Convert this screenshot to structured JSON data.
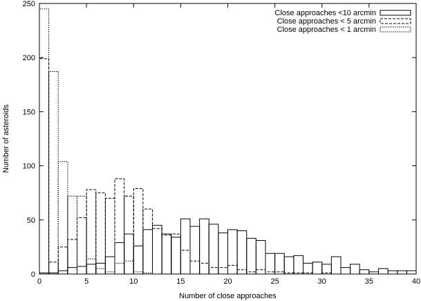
{
  "chart_data": {
    "type": "bar",
    "title": "",
    "xlabel": "Number of close approaches",
    "ylabel": "Number of asteroids",
    "xlim": [
      0,
      40
    ],
    "ylim": [
      0,
      250
    ],
    "xticks": [
      "0",
      "5",
      "10",
      "15",
      "20",
      "25",
      "30",
      "35",
      "40"
    ],
    "yticks": [
      "0",
      "50",
      "100",
      "150",
      "200",
      "250"
    ],
    "legend_position": "top-right",
    "grid": false,
    "bins": [
      0,
      1,
      2,
      3,
      4,
      5,
      6,
      7,
      8,
      9,
      10,
      11,
      12,
      13,
      14,
      15,
      16,
      17,
      18,
      19,
      20,
      21,
      22,
      23,
      24,
      25,
      26,
      27,
      28,
      29,
      30,
      31,
      32,
      33,
      34,
      35,
      36,
      37,
      38,
      39
    ],
    "series": [
      {
        "name": "Close approaches <10 arcmin",
        "line_style": "solid",
        "values": [
          1,
          1,
          3,
          6,
          7,
          9,
          10,
          16,
          29,
          37,
          26,
          41,
          45,
          37,
          34,
          51,
          44,
          51,
          46,
          38,
          41,
          40,
          33,
          31,
          19,
          19,
          16,
          17,
          10,
          11,
          9,
          16,
          6,
          9,
          4,
          2,
          5,
          3,
          3,
          3
        ]
      },
      {
        "name": "Close approaches < 5 arcmin",
        "line_style": "dashed",
        "values": [
          199,
          11,
          25,
          32,
          52,
          78,
          75,
          70,
          88,
          72,
          79,
          60,
          42,
          36,
          37,
          22,
          12,
          10,
          6,
          6,
          8,
          4,
          2,
          4,
          2,
          2,
          1,
          1,
          1,
          0,
          1,
          0,
          0,
          0,
          0,
          0,
          0,
          0,
          0,
          0
        ]
      },
      {
        "name": "Close approaches < 1 arcmin",
        "line_style": "dotted",
        "values": [
          245,
          187,
          104,
          72,
          72,
          14,
          5,
          2,
          10,
          12,
          2,
          1,
          0,
          0,
          0,
          0,
          0,
          0,
          0,
          0,
          0,
          0,
          0,
          0,
          0,
          0,
          0,
          0,
          0,
          0,
          0,
          0,
          0,
          0,
          0,
          0,
          0,
          0,
          0,
          0
        ]
      }
    ]
  }
}
